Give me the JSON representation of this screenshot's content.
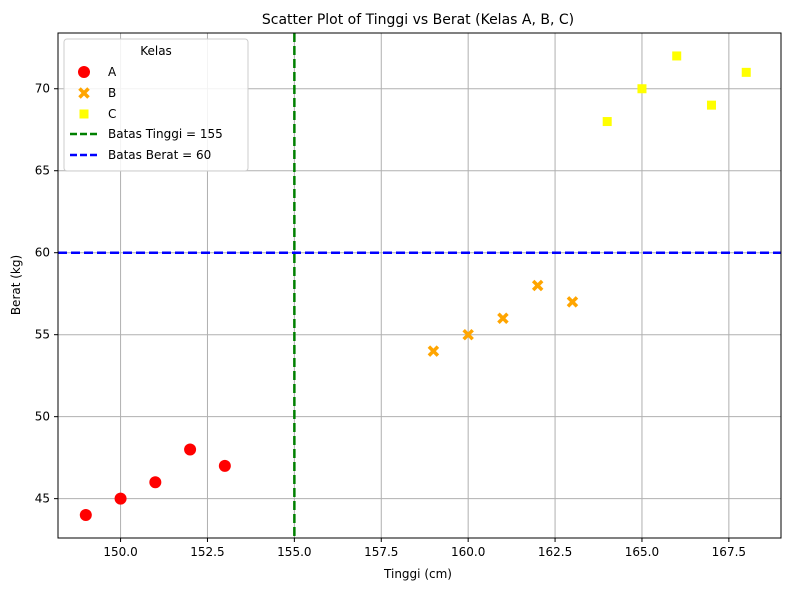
{
  "chart_data": {
    "type": "scatter",
    "title": "Scatter Plot of Tinggi vs Berat (Kelas A, B, C)",
    "xlabel": "Tinggi (cm)",
    "ylabel": "Berat (kg)",
    "xlim": [
      148.2,
      169.0
    ],
    "ylim": [
      42.6,
      73.4
    ],
    "xticks": [
      150.0,
      152.5,
      155.0,
      157.5,
      160.0,
      162.5,
      165.0,
      167.5
    ],
    "xtick_labels": [
      "150.0",
      "152.5",
      "155.0",
      "157.5",
      "160.0",
      "162.5",
      "165.0",
      "167.5"
    ],
    "yticks": [
      45,
      50,
      55,
      60,
      65,
      70
    ],
    "ytick_labels": [
      "45",
      "50",
      "55",
      "60",
      "65",
      "70"
    ],
    "grid": true,
    "legend": {
      "title": "Kelas",
      "position": "top-left",
      "entries": [
        "A",
        "B",
        "C",
        "Batas Tinggi = 155",
        "Batas Berat = 60"
      ]
    },
    "series": [
      {
        "name": "A",
        "marker": "circle",
        "color": "#ff0000",
        "x": [
          149,
          150,
          151,
          152,
          153
        ],
        "y": [
          44,
          45,
          46,
          48,
          47
        ]
      },
      {
        "name": "B",
        "marker": "x",
        "color": "#ffa500",
        "x": [
          159,
          160,
          161,
          162,
          163
        ],
        "y": [
          54,
          55,
          56,
          58,
          57
        ]
      },
      {
        "name": "C",
        "marker": "square",
        "color": "#ffff00",
        "x": [
          164,
          165,
          166,
          167,
          168
        ],
        "y": [
          68,
          70,
          72,
          69,
          71
        ]
      }
    ],
    "reference_lines": [
      {
        "name": "Batas Tinggi = 155",
        "orientation": "vertical",
        "value": 155,
        "color": "#008000",
        "style": "dashed"
      },
      {
        "name": "Batas Berat = 60",
        "orientation": "horizontal",
        "value": 60,
        "color": "#0000ff",
        "style": "dashed"
      }
    ]
  }
}
